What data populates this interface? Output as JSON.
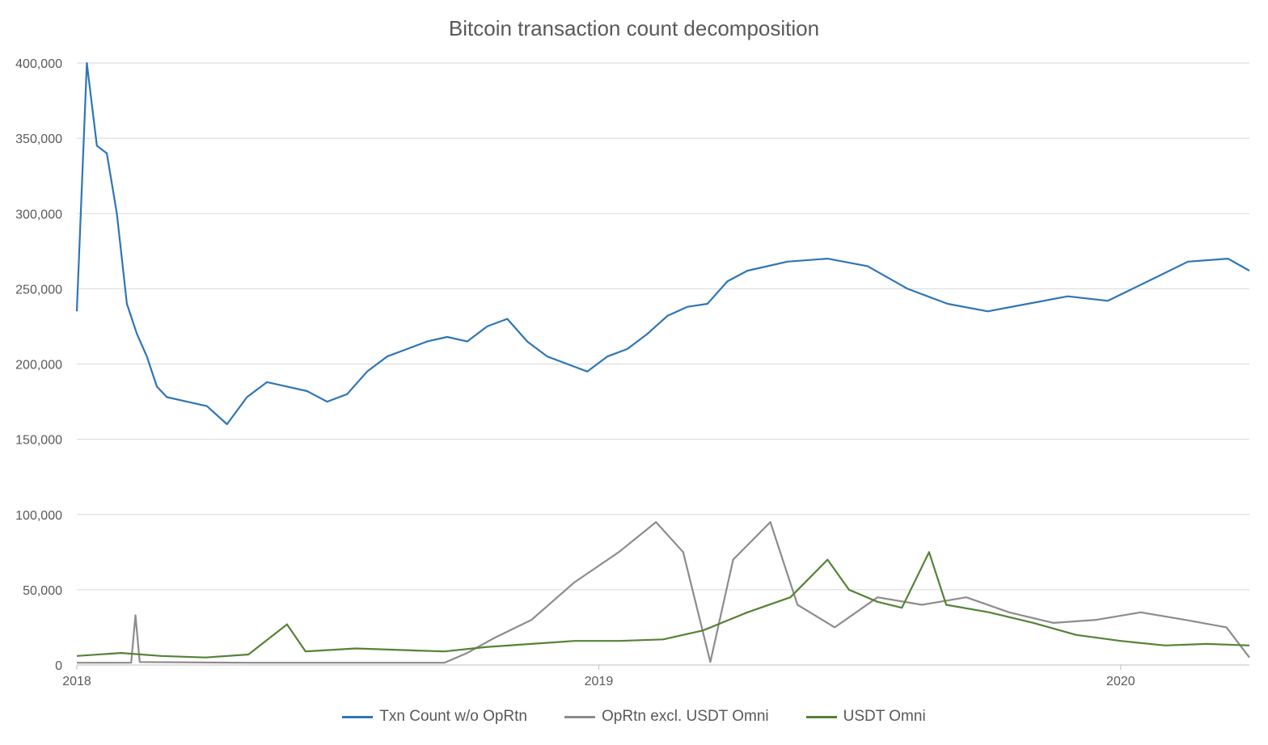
{
  "chart_data": {
    "type": "line",
    "title": "Bitcoin transaction count decomposition",
    "xlabel": "",
    "ylabel": "",
    "x_range": [
      "2018-01-01",
      "2020-03-31"
    ],
    "x_ticks": [
      "2018",
      "2019",
      "2020"
    ],
    "y_range": [
      0,
      400000
    ],
    "y_ticks": [
      "0",
      "50,000",
      "100,000",
      "150,000",
      "200,000",
      "250,000",
      "300,000",
      "350,000",
      "400,000"
    ],
    "grid": "horizontal",
    "legend_position": "bottom",
    "series": [
      {
        "name": "Txn Count w/o OpRtn",
        "color": "#2E75B6",
        "points": [
          [
            "2018-01-01",
            235000
          ],
          [
            "2018-01-08",
            400000
          ],
          [
            "2018-01-15",
            345000
          ],
          [
            "2018-01-22",
            340000
          ],
          [
            "2018-01-29",
            300000
          ],
          [
            "2018-02-05",
            240000
          ],
          [
            "2018-02-12",
            220000
          ],
          [
            "2018-02-19",
            205000
          ],
          [
            "2018-02-26",
            185000
          ],
          [
            "2018-03-05",
            178000
          ],
          [
            "2018-03-19",
            175000
          ],
          [
            "2018-04-02",
            172000
          ],
          [
            "2018-04-16",
            160000
          ],
          [
            "2018-04-30",
            178000
          ],
          [
            "2018-05-14",
            188000
          ],
          [
            "2018-05-28",
            185000
          ],
          [
            "2018-06-11",
            182000
          ],
          [
            "2018-06-25",
            175000
          ],
          [
            "2018-07-09",
            180000
          ],
          [
            "2018-07-23",
            195000
          ],
          [
            "2018-08-06",
            205000
          ],
          [
            "2018-08-20",
            210000
          ],
          [
            "2018-09-03",
            215000
          ],
          [
            "2018-09-17",
            218000
          ],
          [
            "2018-10-01",
            215000
          ],
          [
            "2018-10-15",
            225000
          ],
          [
            "2018-10-29",
            230000
          ],
          [
            "2018-11-12",
            215000
          ],
          [
            "2018-11-26",
            205000
          ],
          [
            "2018-12-10",
            200000
          ],
          [
            "2018-12-24",
            195000
          ],
          [
            "2019-01-07",
            205000
          ],
          [
            "2019-01-21",
            210000
          ],
          [
            "2019-02-04",
            220000
          ],
          [
            "2019-02-18",
            232000
          ],
          [
            "2019-03-04",
            238000
          ],
          [
            "2019-03-18",
            240000
          ],
          [
            "2019-04-01",
            255000
          ],
          [
            "2019-04-15",
            262000
          ],
          [
            "2019-05-13",
            268000
          ],
          [
            "2019-06-10",
            270000
          ],
          [
            "2019-07-08",
            265000
          ],
          [
            "2019-08-05",
            250000
          ],
          [
            "2019-09-02",
            240000
          ],
          [
            "2019-09-30",
            235000
          ],
          [
            "2019-10-28",
            240000
          ],
          [
            "2019-11-25",
            245000
          ],
          [
            "2019-12-23",
            242000
          ],
          [
            "2020-01-20",
            255000
          ],
          [
            "2020-02-17",
            268000
          ],
          [
            "2020-03-16",
            270000
          ],
          [
            "2020-03-31",
            262000
          ]
        ]
      },
      {
        "name": "OpRtn excl. USDT Omni",
        "color": "#8C8C8C",
        "points": [
          [
            "2018-01-01",
            1500
          ],
          [
            "2018-02-08",
            1500
          ],
          [
            "2018-02-11",
            33000
          ],
          [
            "2018-02-14",
            2000
          ],
          [
            "2018-05-01",
            1500
          ],
          [
            "2018-07-01",
            1500
          ],
          [
            "2018-09-15",
            1500
          ],
          [
            "2018-10-01",
            8000
          ],
          [
            "2018-10-20",
            18000
          ],
          [
            "2018-11-15",
            30000
          ],
          [
            "2018-12-15",
            55000
          ],
          [
            "2019-01-15",
            75000
          ],
          [
            "2019-02-10",
            95000
          ],
          [
            "2019-03-01",
            75000
          ],
          [
            "2019-03-20",
            2000
          ],
          [
            "2019-04-05",
            70000
          ],
          [
            "2019-05-01",
            95000
          ],
          [
            "2019-05-20",
            40000
          ],
          [
            "2019-06-15",
            25000
          ],
          [
            "2019-07-15",
            45000
          ],
          [
            "2019-08-15",
            40000
          ],
          [
            "2019-09-15",
            45000
          ],
          [
            "2019-10-15",
            35000
          ],
          [
            "2019-11-15",
            28000
          ],
          [
            "2019-12-15",
            30000
          ],
          [
            "2020-01-15",
            35000
          ],
          [
            "2020-02-15",
            30000
          ],
          [
            "2020-03-15",
            25000
          ],
          [
            "2020-03-31",
            5000
          ]
        ]
      },
      {
        "name": "USDT Omni",
        "color": "#548235",
        "points": [
          [
            "2018-01-01",
            6000
          ],
          [
            "2018-02-01",
            8000
          ],
          [
            "2018-03-01",
            6000
          ],
          [
            "2018-04-01",
            5000
          ],
          [
            "2018-05-01",
            7000
          ],
          [
            "2018-05-28",
            27000
          ],
          [
            "2018-06-10",
            9000
          ],
          [
            "2018-07-15",
            11000
          ],
          [
            "2018-08-15",
            10000
          ],
          [
            "2018-09-15",
            9000
          ],
          [
            "2018-10-15",
            12000
          ],
          [
            "2018-11-15",
            14000
          ],
          [
            "2018-12-15",
            16000
          ],
          [
            "2019-01-15",
            16000
          ],
          [
            "2019-02-15",
            17000
          ],
          [
            "2019-03-15",
            23000
          ],
          [
            "2019-04-15",
            35000
          ],
          [
            "2019-05-15",
            45000
          ],
          [
            "2019-06-10",
            70000
          ],
          [
            "2019-06-25",
            50000
          ],
          [
            "2019-07-15",
            42000
          ],
          [
            "2019-08-01",
            38000
          ],
          [
            "2019-08-20",
            75000
          ],
          [
            "2019-09-01",
            40000
          ],
          [
            "2019-10-01",
            35000
          ],
          [
            "2019-11-01",
            28000
          ],
          [
            "2019-12-01",
            20000
          ],
          [
            "2020-01-01",
            16000
          ],
          [
            "2020-02-01",
            13000
          ],
          [
            "2020-03-01",
            14000
          ],
          [
            "2020-03-31",
            13000
          ]
        ]
      }
    ]
  }
}
